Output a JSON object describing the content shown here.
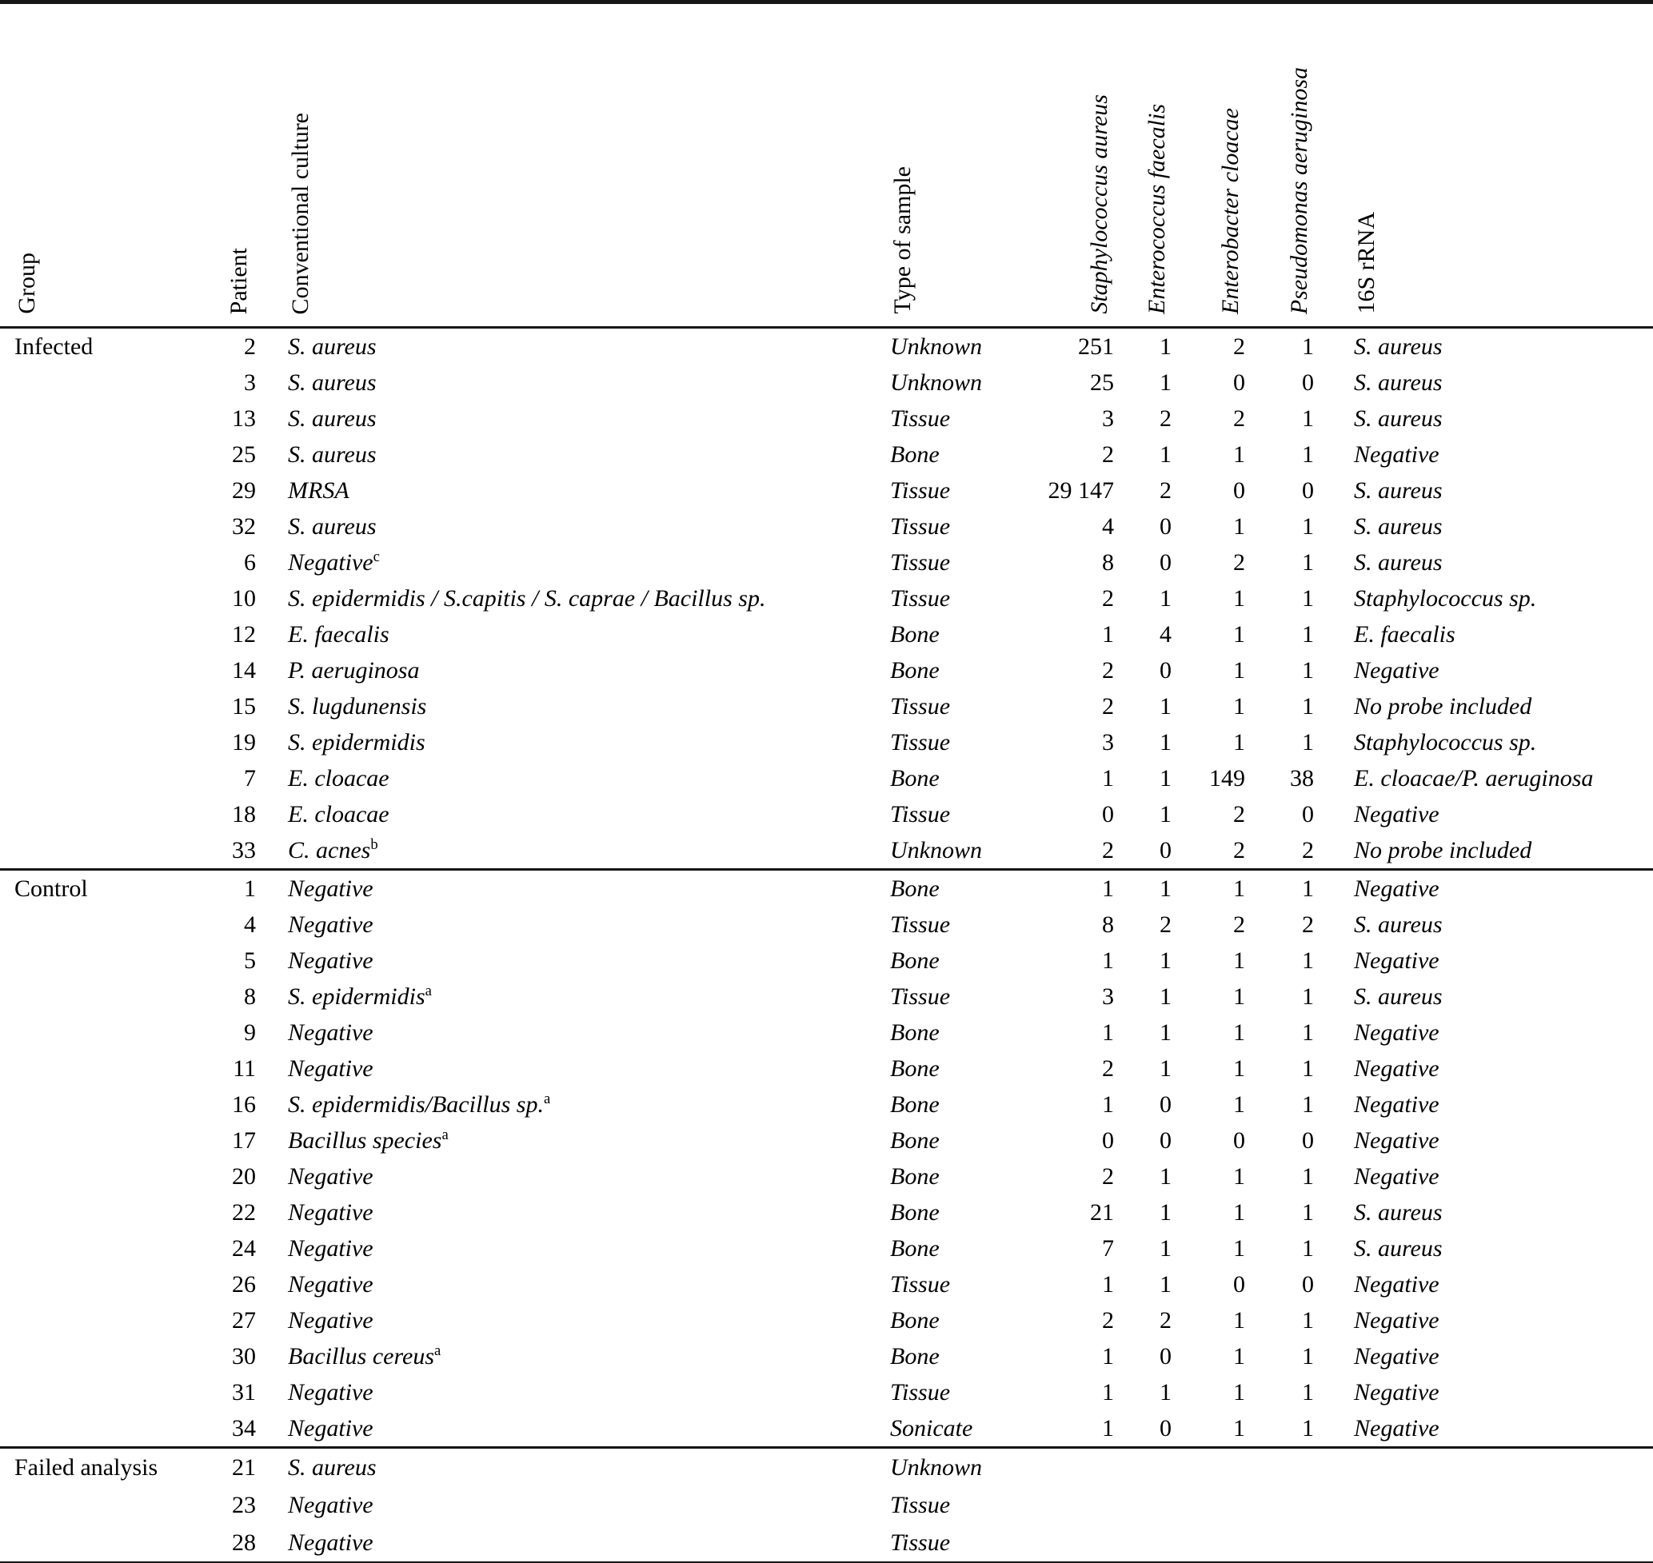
{
  "table": {
    "columns": [
      {
        "label": "Group",
        "italic": false
      },
      {
        "label": "Patient",
        "italic": false
      },
      {
        "label": "Conventional culture",
        "italic": false
      },
      {
        "label": "Type of sample",
        "italic": false
      },
      {
        "label": "Staphylococcus aureus",
        "italic": true
      },
      {
        "label": "Enterococcus faecalis",
        "italic": true
      },
      {
        "label": "Enterobacter cloacae",
        "italic": true
      },
      {
        "label": "Pseudomonas aeruginosa",
        "italic": true
      },
      {
        "label": "16S rRNA",
        "italic": false
      }
    ],
    "sections": [
      {
        "label": "Infected",
        "rows": [
          {
            "patient": "2",
            "culture": "S. aureus",
            "culture_sup": "",
            "sample": "Unknown",
            "counts": [
              "251",
              "1",
              "2",
              "1"
            ],
            "rrna": "S. aureus"
          },
          {
            "patient": "3",
            "culture": "S. aureus",
            "culture_sup": "",
            "sample": "Unknown",
            "counts": [
              "25",
              "1",
              "0",
              "0"
            ],
            "rrna": "S. aureus"
          },
          {
            "patient": "13",
            "culture": "S. aureus",
            "culture_sup": "",
            "sample": "Tissue",
            "counts": [
              "3",
              "2",
              "2",
              "1"
            ],
            "rrna": "S. aureus"
          },
          {
            "patient": "25",
            "culture": "S. aureus",
            "culture_sup": "",
            "sample": "Bone",
            "counts": [
              "2",
              "1",
              "1",
              "1"
            ],
            "rrna": "Negative"
          },
          {
            "patient": "29",
            "culture": "MRSA",
            "culture_sup": "",
            "sample": "Tissue",
            "counts": [
              "29 147",
              "2",
              "0",
              "0"
            ],
            "rrna": "S. aureus"
          },
          {
            "patient": "32",
            "culture": "S. aureus",
            "culture_sup": "",
            "sample": "Tissue",
            "counts": [
              "4",
              "0",
              "1",
              "1"
            ],
            "rrna": "S. aureus"
          },
          {
            "patient": "6",
            "culture": "Negative",
            "culture_sup": "c",
            "sample": "Tissue",
            "counts": [
              "8",
              "0",
              "2",
              "1"
            ],
            "rrna": "S. aureus"
          },
          {
            "patient": "10",
            "culture": "S. epidermidis / S.capitis / S. caprae / Bacillus sp.",
            "culture_sup": "",
            "sample": "Tissue",
            "counts": [
              "2",
              "1",
              "1",
              "1"
            ],
            "rrna": "Staphylococcus sp."
          },
          {
            "patient": "12",
            "culture": "E. faecalis",
            "culture_sup": "",
            "sample": "Bone",
            "counts": [
              "1",
              "4",
              "1",
              "1"
            ],
            "rrna": "E. faecalis"
          },
          {
            "patient": "14",
            "culture": "P. aeruginosa",
            "culture_sup": "",
            "sample": "Bone",
            "counts": [
              "2",
              "0",
              "1",
              "1"
            ],
            "rrna": "Negative"
          },
          {
            "patient": "15",
            "culture": "S. lugdunensis",
            "culture_sup": "",
            "sample": "Tissue",
            "counts": [
              "2",
              "1",
              "1",
              "1"
            ],
            "rrna": "No probe included"
          },
          {
            "patient": "19",
            "culture": "S. epidermidis",
            "culture_sup": "",
            "sample": "Tissue",
            "counts": [
              "3",
              "1",
              "1",
              "1"
            ],
            "rrna": "Staphylococcus sp."
          },
          {
            "patient": "7",
            "culture": "E. cloacae",
            "culture_sup": "",
            "sample": "Bone",
            "counts": [
              "1",
              "1",
              "149",
              "38"
            ],
            "rrna": "E. cloacae/P. aeruginosa"
          },
          {
            "patient": "18",
            "culture": "E. cloacae",
            "culture_sup": "",
            "sample": "Tissue",
            "counts": [
              "0",
              "1",
              "2",
              "0"
            ],
            "rrna": "Negative"
          },
          {
            "patient": "33",
            "culture": "C. acnes",
            "culture_sup": "b",
            "sample": "Unknown",
            "counts": [
              "2",
              "0",
              "2",
              "2"
            ],
            "rrna": "No probe included"
          }
        ]
      },
      {
        "label": "Control",
        "rows": [
          {
            "patient": "1",
            "culture": "Negative",
            "culture_sup": "",
            "sample": "Bone",
            "counts": [
              "1",
              "1",
              "1",
              "1"
            ],
            "rrna": "Negative"
          },
          {
            "patient": "4",
            "culture": "Negative",
            "culture_sup": "",
            "sample": "Tissue",
            "counts": [
              "8",
              "2",
              "2",
              "2"
            ],
            "rrna": "S. aureus"
          },
          {
            "patient": "5",
            "culture": "Negative",
            "culture_sup": "",
            "sample": "Bone",
            "counts": [
              "1",
              "1",
              "1",
              "1"
            ],
            "rrna": "Negative"
          },
          {
            "patient": "8",
            "culture": "S. epidermidis",
            "culture_sup": "a",
            "sample": "Tissue",
            "counts": [
              "3",
              "1",
              "1",
              "1"
            ],
            "rrna": "S. aureus"
          },
          {
            "patient": "9",
            "culture": "Negative",
            "culture_sup": "",
            "sample": "Bone",
            "counts": [
              "1",
              "1",
              "1",
              "1"
            ],
            "rrna": "Negative"
          },
          {
            "patient": "11",
            "culture": "Negative",
            "culture_sup": "",
            "sample": "Bone",
            "counts": [
              "2",
              "1",
              "1",
              "1"
            ],
            "rrna": "Negative"
          },
          {
            "patient": "16",
            "culture": "S. epidermidis/Bacillus sp.",
            "culture_sup": "a",
            "sample": "Bone",
            "counts": [
              "1",
              "0",
              "1",
              "1"
            ],
            "rrna": "Negative"
          },
          {
            "patient": "17",
            "culture": "Bacillus species",
            "culture_sup": "a",
            "sample": "Bone",
            "counts": [
              "0",
              "0",
              "0",
              "0"
            ],
            "rrna": "Negative"
          },
          {
            "patient": "20",
            "culture": "Negative",
            "culture_sup": "",
            "sample": "Bone",
            "counts": [
              "2",
              "1",
              "1",
              "1"
            ],
            "rrna": "Negative"
          },
          {
            "patient": "22",
            "culture": "Negative",
            "culture_sup": "",
            "sample": "Bone",
            "counts": [
              "21",
              "1",
              "1",
              "1"
            ],
            "rrna": "S. aureus"
          },
          {
            "patient": "24",
            "culture": "Negative",
            "culture_sup": "",
            "sample": "Bone",
            "counts": [
              "7",
              "1",
              "1",
              "1"
            ],
            "rrna": "S. aureus"
          },
          {
            "patient": "26",
            "culture": "Negative",
            "culture_sup": "",
            "sample": "Tissue",
            "counts": [
              "1",
              "1",
              "0",
              "0"
            ],
            "rrna": "Negative"
          },
          {
            "patient": "27",
            "culture": "Negative",
            "culture_sup": "",
            "sample": "Bone",
            "counts": [
              "2",
              "2",
              "1",
              "1"
            ],
            "rrna": "Negative"
          },
          {
            "patient": "30",
            "culture": "Bacillus cereus",
            "culture_sup": "a",
            "sample": "Bone",
            "counts": [
              "1",
              "0",
              "1",
              "1"
            ],
            "rrna": "Negative"
          },
          {
            "patient": "31",
            "culture": "Negative",
            "culture_sup": "",
            "sample": "Tissue",
            "counts": [
              "1",
              "1",
              "1",
              "1"
            ],
            "rrna": "Negative"
          },
          {
            "patient": "34",
            "culture": "Negative",
            "culture_sup": "",
            "sample": "Sonicate",
            "counts": [
              "1",
              "0",
              "1",
              "1"
            ],
            "rrna": "Negative"
          }
        ]
      },
      {
        "label": "Failed analysis",
        "rows": [
          {
            "patient": "21",
            "culture": "S. aureus",
            "culture_sup": "",
            "sample": "Unknown",
            "counts": [
              "",
              "",
              "",
              ""
            ],
            "rrna": ""
          },
          {
            "patient": "23",
            "culture": "Negative",
            "culture_sup": "",
            "sample": "Tissue",
            "counts": [
              "",
              "",
              "",
              ""
            ],
            "rrna": ""
          },
          {
            "patient": "28",
            "culture": "Negative",
            "culture_sup": "",
            "sample": "Tissue",
            "counts": [
              "",
              "",
              "",
              ""
            ],
            "rrna": ""
          }
        ]
      }
    ]
  }
}
